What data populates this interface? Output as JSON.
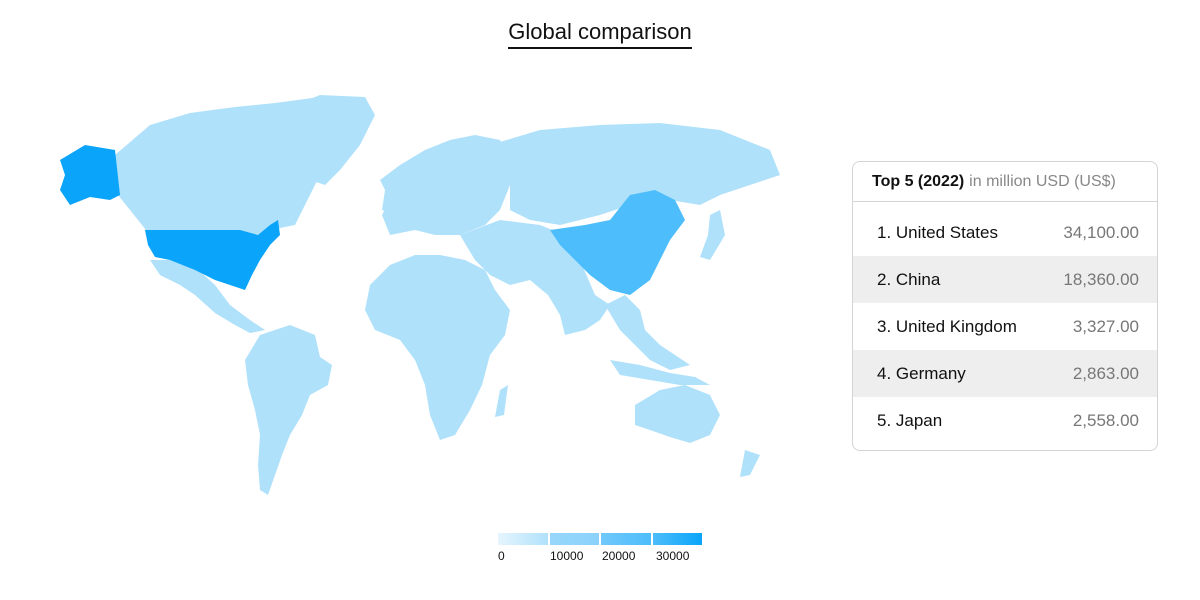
{
  "title": "Global comparison",
  "colors": {
    "base": "#b0e1fb",
    "bin1": "#97d7fb",
    "bin2": "#4dbdfb",
    "bin3": "#0aa4fa",
    "legend_start": "#e6f5fe"
  },
  "legend": {
    "labels": [
      "0",
      "10000",
      "20000",
      "30000"
    ]
  },
  "top5": {
    "header_bold": "Top 5 (2022)",
    "header_unit": "in million USD (US$)",
    "rows": [
      {
        "name": "1. United States",
        "value": "34,100.00"
      },
      {
        "name": "2. China",
        "value": "18,360.00"
      },
      {
        "name": "3. United Kingdom",
        "value": "3,327.00"
      },
      {
        "name": "4. Germany",
        "value": "2,863.00"
      },
      {
        "name": "5. Japan",
        "value": "2,558.00"
      }
    ]
  },
  "chart_data": {
    "type": "choropleth",
    "title": "Global comparison",
    "unit": "in million USD (US$)",
    "year": "2022",
    "scale": [
      0,
      30000
    ],
    "values": [
      {
        "country": "United States",
        "value": 34100
      },
      {
        "country": "China",
        "value": 18360
      },
      {
        "country": "United Kingdom",
        "value": 3327
      },
      {
        "country": "Germany",
        "value": 2863
      },
      {
        "country": "Japan",
        "value": 2558
      }
    ]
  }
}
